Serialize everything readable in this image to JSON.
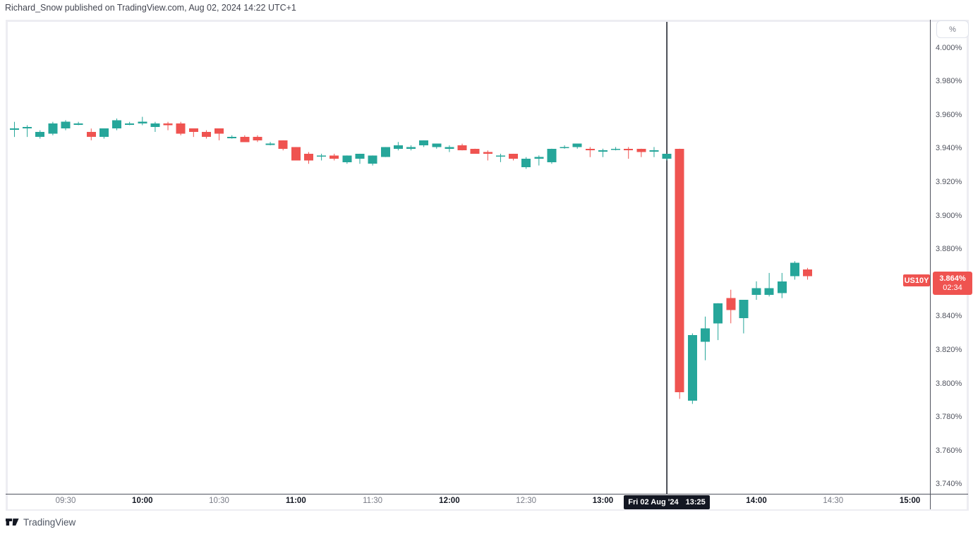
{
  "attribution": "Richard_Snow published on TradingView.com, Aug 02, 2024 14:22 UTC+1",
  "footer": {
    "brand": "TradingView"
  },
  "price_axis": {
    "unit_button": "%",
    "ticks": [
      "4.000%",
      "3.980%",
      "3.960%",
      "3.940%",
      "3.920%",
      "3.900%",
      "3.880%",
      "3.840%",
      "3.820%",
      "3.800%",
      "3.780%",
      "3.760%",
      "3.740%"
    ]
  },
  "time_axis": {
    "labels": [
      {
        "text": "09:30",
        "strong": false
      },
      {
        "text": "10:00",
        "strong": true
      },
      {
        "text": "10:30",
        "strong": false
      },
      {
        "text": "11:00",
        "strong": true
      },
      {
        "text": "11:30",
        "strong": false
      },
      {
        "text": "12:00",
        "strong": true
      },
      {
        "text": "12:30",
        "strong": false
      },
      {
        "text": "13:00",
        "strong": true
      },
      {
        "text": "14:00",
        "strong": true
      },
      {
        "text": "14:30",
        "strong": false
      },
      {
        "text": "15:00",
        "strong": true
      }
    ],
    "crosshair_label": {
      "date": "Fri 02 Aug '24",
      "time": "13:25"
    }
  },
  "price_label": {
    "symbol": "US10Y",
    "value": "3.864%",
    "countdown": "02:34"
  },
  "colors": {
    "up": "#26a69a",
    "down": "#ef5350",
    "crosshair": "#131722",
    "label_bg": "#ef5350",
    "axis_line": "#50535e"
  },
  "chart_data": {
    "type": "candlestick",
    "symbol": "US10Y",
    "title": "US 10Y yield, 5-minute candles",
    "interval": "5m",
    "unit": "percent",
    "ylabel": "%",
    "ylim": [
      3.734,
      4.016
    ],
    "y_tick_step": 0.02,
    "x_ticks": [
      "09:30",
      "10:00",
      "10:30",
      "11:00",
      "11:30",
      "12:00",
      "12:30",
      "13:00",
      "14:00",
      "14:30",
      "15:00"
    ],
    "crosshair_time": "13:25",
    "last": {
      "price": 3.864,
      "countdown": "02:34"
    },
    "columns": [
      "time",
      "open",
      "high",
      "low",
      "close"
    ],
    "candles": [
      [
        "09:10",
        3.952,
        3.956,
        3.947,
        3.952
      ],
      [
        "09:15",
        3.952,
        3.954,
        3.947,
        3.953
      ],
      [
        "09:20",
        3.947,
        3.951,
        3.946,
        3.95
      ],
      [
        "09:25",
        3.949,
        3.956,
        3.948,
        3.955
      ],
      [
        "09:30",
        3.952,
        3.957,
        3.951,
        3.956
      ],
      [
        "09:35",
        3.955,
        3.956,
        3.954,
        3.955
      ],
      [
        "09:40",
        3.95,
        3.952,
        3.945,
        3.947
      ],
      [
        "09:45",
        3.947,
        3.952,
        3.946,
        3.952
      ],
      [
        "09:50",
        3.952,
        3.958,
        3.951,
        3.957
      ],
      [
        "09:55",
        3.955,
        3.956,
        3.954,
        3.955
      ],
      [
        "10:00",
        3.955,
        3.959,
        3.954,
        3.956
      ],
      [
        "10:05",
        3.953,
        3.956,
        3.95,
        3.955
      ],
      [
        "10:10",
        3.955,
        3.956,
        3.951,
        3.954
      ],
      [
        "10:15",
        3.955,
        3.956,
        3.948,
        3.949
      ],
      [
        "10:20",
        3.952,
        3.952,
        3.947,
        3.95
      ],
      [
        "10:25",
        3.95,
        3.951,
        3.946,
        3.947
      ],
      [
        "10:30",
        3.952,
        3.952,
        3.945,
        3.949
      ],
      [
        "10:35",
        3.947,
        3.948,
        3.946,
        3.947
      ],
      [
        "10:40",
        3.947,
        3.948,
        3.944,
        3.944
      ],
      [
        "10:45",
        3.947,
        3.948,
        3.944,
        3.945
      ],
      [
        "10:50",
        3.943,
        3.944,
        3.942,
        3.943
      ],
      [
        "10:55",
        3.945,
        3.945,
        3.939,
        3.94
      ],
      [
        "11:00",
        3.941,
        3.941,
        3.933,
        3.933
      ],
      [
        "11:05",
        3.937,
        3.938,
        3.931,
        3.933
      ],
      [
        "11:10",
        3.936,
        3.937,
        3.933,
        3.936
      ],
      [
        "11:15",
        3.936,
        3.937,
        3.933,
        3.934
      ],
      [
        "11:20",
        3.932,
        3.936,
        3.931,
        3.936
      ],
      [
        "11:25",
        3.934,
        3.937,
        3.931,
        3.937
      ],
      [
        "11:30",
        3.931,
        3.936,
        3.93,
        3.936
      ],
      [
        "11:35",
        3.935,
        3.941,
        3.935,
        3.941
      ],
      [
        "11:40",
        3.94,
        3.944,
        3.939,
        3.942
      ],
      [
        "11:45",
        3.94,
        3.942,
        3.939,
        3.941
      ],
      [
        "11:50",
        3.942,
        3.945,
        3.941,
        3.945
      ],
      [
        "11:55",
        3.941,
        3.943,
        3.94,
        3.943
      ],
      [
        "12:00",
        3.94,
        3.942,
        3.938,
        3.941
      ],
      [
        "12:05",
        3.942,
        3.943,
        3.939,
        3.939
      ],
      [
        "12:10",
        3.94,
        3.94,
        3.937,
        3.937
      ],
      [
        "12:15",
        3.938,
        3.939,
        3.933,
        3.937
      ],
      [
        "12:20",
        3.936,
        3.937,
        3.932,
        3.936
      ],
      [
        "12:25",
        3.937,
        3.937,
        3.933,
        3.934
      ],
      [
        "12:30",
        3.929,
        3.935,
        3.928,
        3.934
      ],
      [
        "12:35",
        3.934,
        3.936,
        3.93,
        3.935
      ],
      [
        "12:40",
        3.932,
        3.94,
        3.931,
        3.94
      ],
      [
        "12:45",
        3.941,
        3.942,
        3.94,
        3.941
      ],
      [
        "12:50",
        3.941,
        3.943,
        3.94,
        3.943
      ],
      [
        "12:55",
        3.94,
        3.941,
        3.935,
        3.939
      ],
      [
        "13:00",
        3.939,
        3.94,
        3.935,
        3.939
      ],
      [
        "13:05",
        3.94,
        3.941,
        3.939,
        3.94
      ],
      [
        "13:10",
        3.94,
        3.941,
        3.934,
        3.939
      ],
      [
        "13:15",
        3.94,
        3.94,
        3.935,
        3.938
      ],
      [
        "13:20",
        3.939,
        3.941,
        3.935,
        3.939
      ],
      [
        "13:25",
        3.934,
        3.937,
        3.933,
        3.937
      ],
      [
        "13:30",
        3.94,
        3.94,
        3.791,
        3.795
      ],
      [
        "13:35",
        3.79,
        3.83,
        3.788,
        3.829
      ],
      [
        "13:40",
        3.825,
        3.84,
        3.814,
        3.833
      ],
      [
        "13:45",
        3.836,
        3.848,
        3.826,
        3.848
      ],
      [
        "13:50",
        3.851,
        3.856,
        3.836,
        3.844
      ],
      [
        "13:55",
        3.839,
        3.85,
        3.83,
        3.85
      ],
      [
        "14:00",
        3.853,
        3.861,
        3.85,
        3.857
      ],
      [
        "14:05",
        3.853,
        3.866,
        3.852,
        3.857
      ],
      [
        "14:10",
        3.854,
        3.866,
        3.851,
        3.861
      ],
      [
        "14:15",
        3.864,
        3.873,
        3.862,
        3.872
      ],
      [
        "14:20",
        3.868,
        3.869,
        3.862,
        3.864
      ]
    ]
  }
}
